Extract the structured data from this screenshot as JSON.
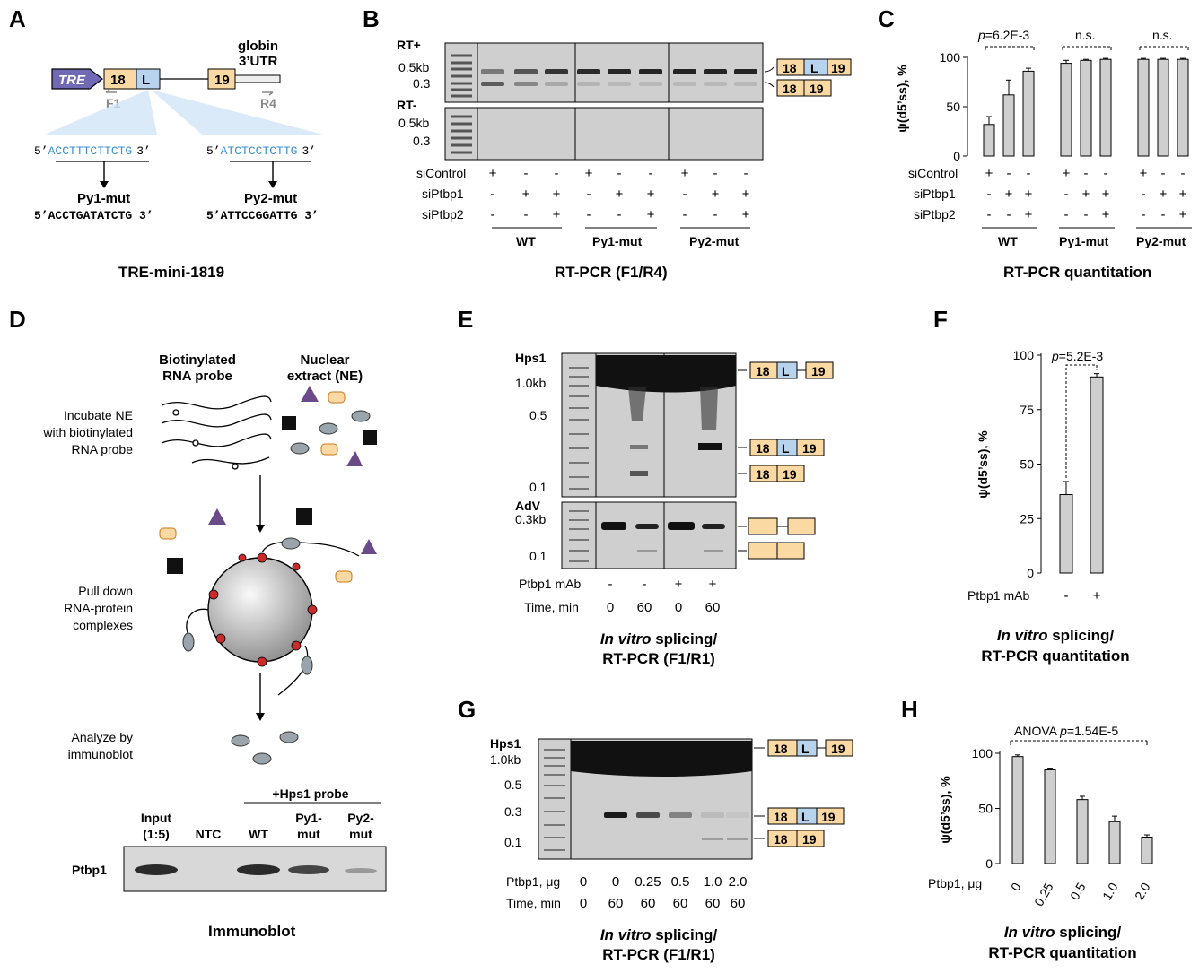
{
  "colors": {
    "exon": "#fbd9a2",
    "exon_stroke": "#000000",
    "intron_L": "#b8d3ee",
    "tre": "#6f6ab3",
    "seq_blue": "#3a8fd0",
    "bar": "#cfcfcf",
    "gel_bg": "#cfcfcf",
    "gel_band": "#1a1a1a",
    "red_ptb": "#cc2b2b",
    "purple": "#6b4a8a",
    "ellipse": "#9aa4ad"
  },
  "panels": {
    "A": {
      "letter": "A",
      "tre": "TRE",
      "exon18": "18",
      "intron": "L",
      "exon19": "19",
      "globin": "globin",
      "utr": "3’UTR",
      "f1": "F1",
      "r4": "R4",
      "py1_pre": "5’",
      "py1_wt": "ACCTTTCTTCTG",
      "py1_post": "3’",
      "py2_pre": "5’",
      "py2_wt": "ATCTCCTCTTG",
      "py2_post": "3’",
      "py1_name": "Py1-mut",
      "py1_mut": "5’ACCTGATATCTG 3’",
      "py2_name": "Py2-mut",
      "py2_mut": "5’ATTCCGGATTG 3’",
      "caption": "TRE-mini-1819"
    },
    "B": {
      "letter": "B",
      "rt_plus": "RT+",
      "rt_minus": "RT-",
      "m05": "0.5kb",
      "m03": "0.3",
      "rows": [
        "siControl",
        "siPtbp1",
        "siPtbp2"
      ],
      "row_vals": [
        [
          "+",
          "-",
          "-",
          "+",
          "-",
          "-",
          "+",
          "-",
          "-"
        ],
        [
          "-",
          "+",
          "+",
          "-",
          "+",
          "+",
          "-",
          "+",
          "+"
        ],
        [
          "-",
          "-",
          "+",
          "-",
          "-",
          "+",
          "-",
          "-",
          "+"
        ]
      ],
      "groups": [
        "WT",
        "Py1-mut",
        "Py2-mut"
      ],
      "iso_long": [
        "18",
        "L",
        "19"
      ],
      "iso_short": [
        "18",
        "19"
      ],
      "caption": "RT-PCR (F1/R4)"
    },
    "C": {
      "letter": "C",
      "p_prefix": "p",
      "p_value": "=6.2E-3",
      "ns1": "n.s.",
      "ns2": "n.s.",
      "ylabel": "ψ(d5’ss), %",
      "ticks": [
        "100",
        "50",
        "0"
      ],
      "rows": [
        "siControl",
        "siPtbp1",
        "siPtbp2"
      ],
      "groups": [
        "WT",
        "Py1-mut",
        "Py2-mut"
      ],
      "caption": "RT-PCR quantitation"
    },
    "D": {
      "letter": "D",
      "probe_title_1": "Biotinylated",
      "probe_title_2": "RNA probe",
      "ne_title_1": "Nuclear",
      "ne_title_2": "extract (NE)",
      "step1": [
        "Incubate NE",
        "with biotinylated",
        "RNA probe"
      ],
      "step2": [
        "Pull down",
        "RNA-protein",
        "complexes"
      ],
      "step3": [
        "Analyze by",
        "immunoblot"
      ],
      "blot_header": "+Hps1 probe",
      "lanes": [
        "Input",
        "(1:5)",
        "NTC",
        "WT",
        "Py1-",
        "mut",
        "Py2-",
        "mut"
      ],
      "blot_row": "Ptbp1",
      "caption": "Immunoblot"
    },
    "E": {
      "letter": "E",
      "hps1": "Hps1",
      "m1": "1.0kb",
      "m05": "0.5",
      "m01": "0.1",
      "adv": "AdV",
      "m03": "0.3kb",
      "m01b": "0.1",
      "row1_label": "Ptbp1 mAb",
      "row1": [
        "-",
        "-",
        "+",
        "+"
      ],
      "row2_label": "Time, min",
      "row2": [
        "0",
        "60",
        "0",
        "60"
      ],
      "caption_italic": "In vitro",
      "caption_rest": " splicing/",
      "caption2": "RT-PCR (F1/R1)"
    },
    "F": {
      "letter": "F",
      "p_prefix": "p",
      "p_value": "=5.2E-3",
      "ylabel": "ψ(d5’ss), %",
      "ticks": [
        "100",
        "75",
        "50",
        "25",
        "0"
      ],
      "xlabel": "Ptbp1 mAb",
      "x": [
        "-",
        "+"
      ],
      "caption_italic": "In vitro",
      "caption_rest": " splicing/",
      "caption2": "RT-PCR quantitation"
    },
    "G": {
      "letter": "G",
      "hps1": "Hps1",
      "m1": "1.0kb",
      "m05": "0.5",
      "m03": "0.3",
      "m01": "0.1",
      "row1_label": "Ptbp1, μg",
      "row1": [
        "0",
        "0",
        "0.25",
        "0.5",
        "1.0",
        "2.0"
      ],
      "row2_label": "Time, min",
      "row2": [
        "0",
        "60",
        "60",
        "60",
        "60",
        "60"
      ],
      "caption_italic": "In vitro",
      "caption_rest": " splicing/",
      "caption2": "RT-PCR (F1/R1)"
    },
    "H": {
      "letter": "H",
      "anova": "ANOVA ",
      "p_prefix": "p",
      "p_value": "=1.54E-5",
      "ylabel": "ψ(d5’ss), %",
      "ticks": [
        "100",
        "50",
        "0"
      ],
      "xlabel": "Ptbp1, μg",
      "caption_italic": "In vitro",
      "caption_rest": " splicing/",
      "caption2": "RT-PCR quantitation"
    }
  },
  "chart_data": [
    {
      "type": "bar",
      "panel": "C",
      "ylabel": "ψ(d5’ss), %",
      "ylim": [
        0,
        100
      ],
      "groups": [
        "WT",
        "Py1-mut",
        "Py2-mut"
      ],
      "conditions": [
        "siControl",
        "siControl+siPtbp1",
        "siPtbp1+siPtbp2"
      ],
      "values": [
        32,
        62,
        86,
        94,
        97,
        98,
        98,
        98,
        98
      ],
      "errors": [
        8,
        15,
        3,
        3,
        1,
        1,
        1,
        1,
        1
      ]
    },
    {
      "type": "bar",
      "panel": "F",
      "ylabel": "ψ(d5’ss), %",
      "ylim": [
        0,
        100
      ],
      "categories": [
        "-",
        "+"
      ],
      "values": [
        36,
        90
      ],
      "errors": [
        6,
        1.5
      ]
    },
    {
      "type": "bar",
      "panel": "H",
      "ylabel": "ψ(d5’ss), %",
      "xlabel": "Ptbp1, μg",
      "ylim": [
        0,
        100
      ],
      "categories": [
        "0",
        "0.25",
        "0.5",
        "1.0",
        "2.0"
      ],
      "values": [
        97,
        85,
        58,
        38,
        24
      ],
      "errors": [
        1.5,
        1.5,
        3,
        5,
        2
      ]
    }
  ]
}
